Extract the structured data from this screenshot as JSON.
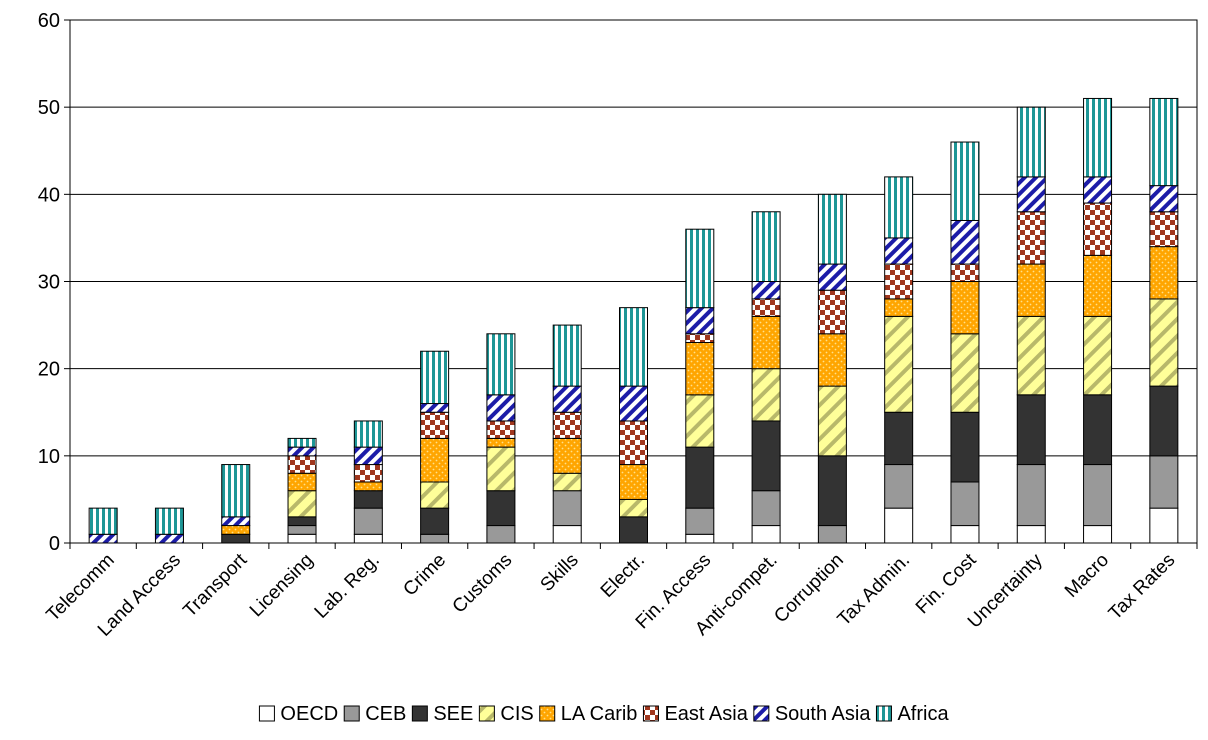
{
  "chart_data": {
    "type": "bar",
    "stacked": true,
    "categories": [
      "Telecomm",
      "Land Access",
      "Transport",
      "Licensing",
      "Lab. Reg.",
      "Crime",
      "Customs",
      "Skills",
      "Electr.",
      "Fin. Access",
      "Anti-compet.",
      "Corruption",
      "Tax Admin.",
      "Fin. Cost",
      "Uncertainty",
      "Macro",
      "Tax Rates"
    ],
    "series": [
      {
        "name": "OECD",
        "values": [
          0,
          0,
          0,
          1,
          1,
          0,
          0,
          2,
          0,
          1,
          2,
          0,
          4,
          2,
          2,
          2,
          4
        ]
      },
      {
        "name": "CEB",
        "values": [
          0,
          0,
          0,
          1,
          3,
          1,
          2,
          4,
          0,
          3,
          4,
          2,
          5,
          5,
          7,
          7,
          6
        ]
      },
      {
        "name": "SEE",
        "values": [
          0,
          0,
          1,
          1,
          2,
          3,
          4,
          0,
          3,
          7,
          8,
          8,
          6,
          8,
          8,
          8,
          8
        ]
      },
      {
        "name": "CIS",
        "values": [
          0,
          0,
          0,
          3,
          0,
          3,
          5,
          2,
          2,
          6,
          6,
          8,
          11,
          9,
          9,
          9,
          10
        ]
      },
      {
        "name": "LA Carib",
        "values": [
          0,
          0,
          1,
          2,
          1,
          5,
          1,
          4,
          4,
          6,
          6,
          6,
          2,
          6,
          6,
          7,
          6
        ]
      },
      {
        "name": "East Asia",
        "values": [
          0,
          0,
          0,
          2,
          2,
          3,
          2,
          3,
          5,
          1,
          2,
          5,
          4,
          2,
          6,
          6,
          4
        ]
      },
      {
        "name": "South Asia",
        "values": [
          1,
          1,
          1,
          1,
          2,
          1,
          3,
          3,
          4,
          3,
          2,
          3,
          3,
          5,
          4,
          3,
          3
        ]
      },
      {
        "name": "Africa",
        "values": [
          3,
          3,
          6,
          1,
          3,
          6,
          7,
          7,
          9,
          9,
          8,
          8,
          7,
          9,
          8,
          9,
          10
        ]
      }
    ],
    "ylim": [
      0,
      60
    ],
    "yticks": [
      0,
      10,
      20,
      30,
      40,
      50,
      60
    ],
    "grid": true,
    "legend_position": "bottom",
    "colors": {
      "OECD": "#ffffff",
      "CEB": "#999999",
      "SEE": "#333333",
      "CIS": "#ffff99",
      "LA Carib": "#ffa500",
      "East Asia": "#a0371e",
      "South Asia": "#1c1ca8",
      "Africa": "#1e9696"
    },
    "patterns": {
      "OECD": "solid",
      "CEB": "solid",
      "SEE": "solid",
      "CIS": "diagonal-stripes",
      "LA Carib": "dotted",
      "East Asia": "checker",
      "South Asia": "diagonal-stripes",
      "Africa": "vertical-stripes"
    }
  }
}
